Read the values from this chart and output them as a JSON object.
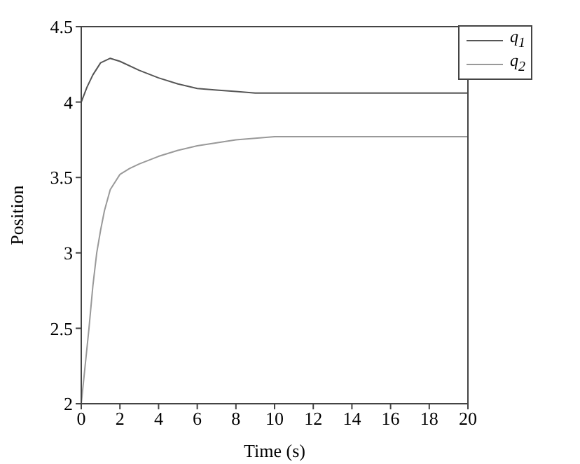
{
  "chart_data": {
    "type": "line",
    "xlabel": "Time (s)",
    "ylabel": "Position",
    "xlim": [
      0,
      20
    ],
    "xticks": [
      0,
      2,
      4,
      6,
      8,
      10,
      12,
      14,
      16,
      18,
      20
    ],
    "ylim": [
      2,
      4.5
    ],
    "yticks": [
      2,
      2.5,
      3,
      3.5,
      4,
      4.5
    ],
    "legend": "top right",
    "marker": "none",
    "line_style": "solid",
    "series": [
      {
        "name": "q$_{1}$",
        "color": "#555555",
        "x": [
          0,
          0.3,
          0.6,
          1,
          1.5,
          2,
          3,
          4,
          5,
          6,
          7,
          8,
          9,
          10,
          12,
          15,
          20
        ],
        "values": [
          4,
          4.1,
          4.18,
          4.26,
          4.29,
          4.27,
          4.21,
          4.16,
          4.12,
          4.09,
          4.08,
          4.07,
          4.06,
          4.06,
          4.06,
          4.06,
          4.06
        ]
      },
      {
        "name": "q$_{2}$",
        "color": "#999999",
        "x": [
          0,
          0.2,
          0.4,
          0.6,
          0.8,
          1,
          1.2,
          1.5,
          2,
          2.5,
          3,
          4,
          5,
          6,
          7,
          8,
          9,
          10,
          12,
          15,
          20
        ],
        "values": [
          2,
          2.25,
          2.5,
          2.78,
          3,
          3.15,
          3.28,
          3.42,
          3.52,
          3.56,
          3.59,
          3.64,
          3.68,
          3.71,
          3.73,
          3.75,
          3.76,
          3.77,
          3.77,
          3.77,
          3.77
        ]
      }
    ]
  }
}
